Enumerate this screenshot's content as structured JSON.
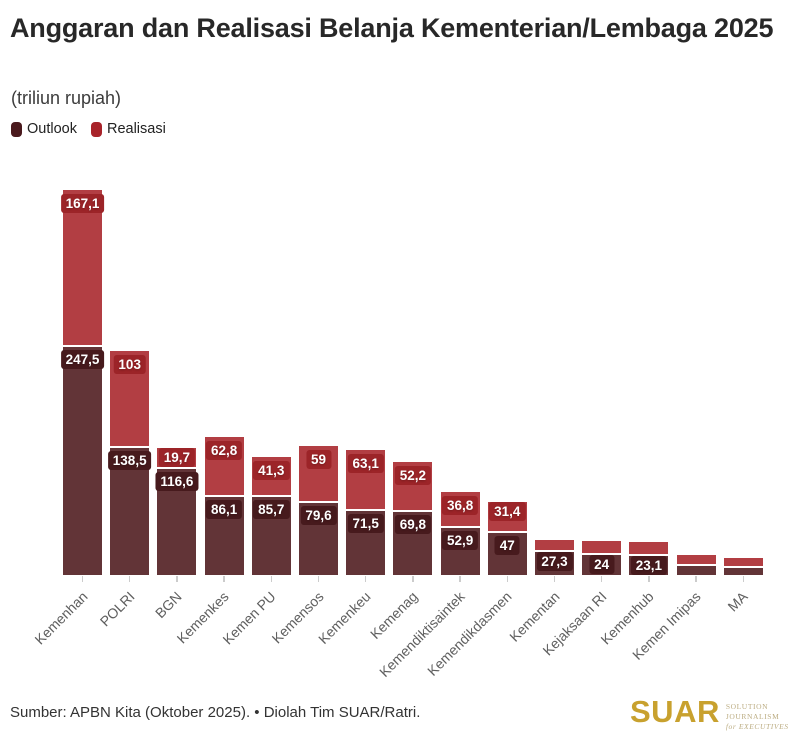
{
  "header": {
    "title": "Anggaran dan Realisasi Belanja Kementerian/Lembaga 2025",
    "subtitle": "(triliun rupiah)"
  },
  "legend": {
    "items": [
      {
        "label": "Outlook",
        "color": "#4a191d"
      },
      {
        "label": "Realisasi",
        "color": "#a8232a"
      }
    ]
  },
  "chart_data": {
    "type": "bar",
    "stacked": true,
    "title": "Anggaran dan Realisasi Belanja Kementerian/Lembaga 2025",
    "unit": "triliun rupiah",
    "series_names": [
      "Outlook",
      "Realisasi"
    ],
    "legend_position": "top-left",
    "grid": false,
    "ylim": [
      0,
      415
    ],
    "categories": [
      "Kemenhan",
      "POLRI",
      "BGN",
      "Kemenkes",
      "Kemen PU",
      "Kemensos",
      "Kemenkeu",
      "Kemenag",
      "Kemendiktisaintek",
      "Kemendikdasmen",
      "Kementan",
      "Kejaksaan RI",
      "Kemenhub",
      "Kemen Imipas",
      "MA"
    ],
    "bars": [
      {
        "category": "Kemenhan",
        "outlook": 247.5,
        "realisasi": 167.1,
        "outlook_label": "247,5",
        "realisasi_label": "167,1"
      },
      {
        "category": "POLRI",
        "outlook": 138.5,
        "realisasi": 103,
        "outlook_label": "138,5",
        "realisasi_label": "103"
      },
      {
        "category": "BGN",
        "outlook": 116.6,
        "realisasi": 19.7,
        "outlook_label": "116,6",
        "realisasi_label": "19,7"
      },
      {
        "category": "Kemenkes",
        "outlook": 86.1,
        "realisasi": 62.8,
        "outlook_label": "86,1",
        "realisasi_label": "62,8"
      },
      {
        "category": "Kemen PU",
        "outlook": 85.7,
        "realisasi": 41.3,
        "outlook_label": "85,7",
        "realisasi_label": "41,3"
      },
      {
        "category": "Kemensos",
        "outlook": 79.6,
        "realisasi": 59,
        "outlook_label": "79,6",
        "realisasi_label": "59"
      },
      {
        "category": "Kemenkeu",
        "outlook": 71.5,
        "realisasi": 63.1,
        "outlook_label": "71,5",
        "realisasi_label": "63,1"
      },
      {
        "category": "Kemenag",
        "outlook": 69.8,
        "realisasi": 52.2,
        "outlook_label": "69,8",
        "realisasi_label": "52,2"
      },
      {
        "category": "Kemendiktisaintek",
        "outlook": 52.9,
        "realisasi": 36.8,
        "outlook_label": "52,9",
        "realisasi_label": "36,8"
      },
      {
        "category": "Kemendikdasmen",
        "outlook": 47,
        "realisasi": 31.4,
        "outlook_label": "47",
        "realisasi_label": "31,4"
      },
      {
        "category": "Kementan",
        "outlook": 27.3,
        "realisasi": 10.5,
        "outlook_label": "27,3",
        "realisasi_label": ""
      },
      {
        "category": "Kejaksaan RI",
        "outlook": 24,
        "realisasi": 12.5,
        "outlook_label": "24",
        "realisasi_label": ""
      },
      {
        "category": "Kemenhub",
        "outlook": 23.1,
        "realisasi": 12,
        "outlook_label": "23,1",
        "realisasi_label": ""
      },
      {
        "category": "Kemen Imipas",
        "outlook": 12,
        "realisasi": 10,
        "outlook_label": "",
        "realisasi_label": ""
      },
      {
        "category": "MA",
        "outlook": 9.5,
        "realisasi": 9,
        "outlook_label": "",
        "realisasi_label": ""
      }
    ],
    "colors": {
      "bar_outlook": "#623437",
      "bar_realisasi": "#b23e43",
      "pill_outlook": "#471a1d",
      "pill_realisasi": "#9c2428"
    }
  },
  "footer": {
    "source": "Sumber: APBN Kita (Oktober 2025). • Diolah Tim SUAR/Ratri.",
    "logo_text": "SUAR",
    "logo_color": "#c8a12e",
    "logo_tagline_line1": "SOLUTION JOURNALISM",
    "logo_tagline_line2": "for EXECUTIVES",
    "logo_tagline_color": "#bcad83"
  }
}
